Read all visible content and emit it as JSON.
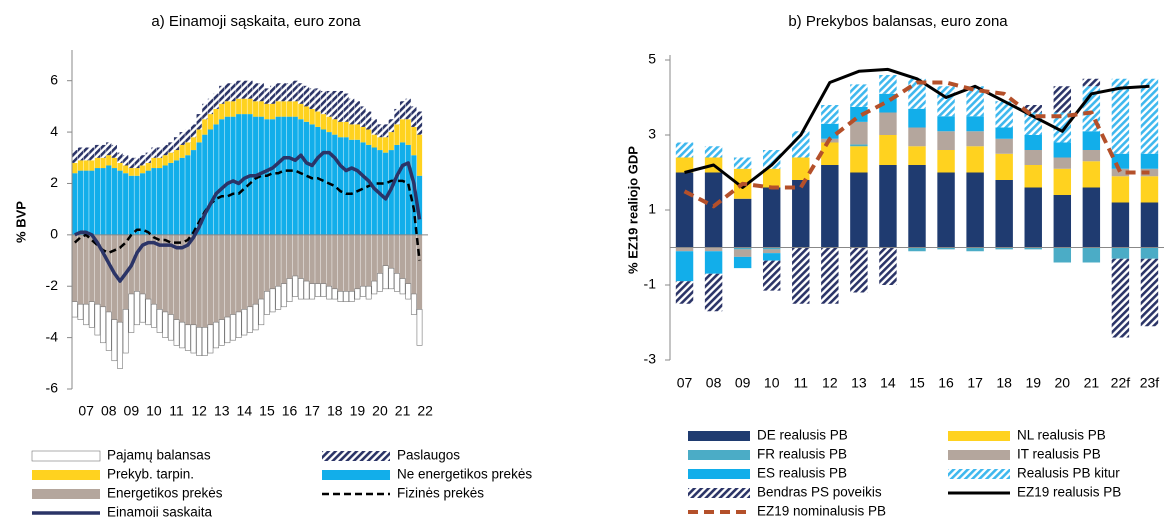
{
  "chart_data": [
    {
      "type": "bar",
      "title": "a) Einamoji sąskaita, euro zona",
      "ylabel": "% BVP",
      "categories": [
        null,
        null,
        "07",
        null,
        null,
        null,
        "08",
        null,
        null,
        null,
        "09",
        null,
        null,
        null,
        "10",
        null,
        null,
        null,
        "11",
        null,
        null,
        null,
        "12",
        null,
        null,
        null,
        "13",
        null,
        null,
        null,
        "14",
        null,
        null,
        null,
        "15",
        null,
        null,
        null,
        "16",
        null,
        null,
        null,
        "17",
        null,
        null,
        null,
        "18",
        null,
        null,
        null,
        "19",
        null,
        null,
        null,
        "20",
        null,
        null,
        null,
        "21",
        null,
        null,
        null,
        "22"
      ],
      "ylim": [
        -6,
        7
      ],
      "yticks": [
        -6,
        -4,
        -2,
        0,
        2,
        4,
        6
      ],
      "series": [
        {
          "name": "Pajamų balansas",
          "type": "bar",
          "color": "#ffffff",
          "values": [
            -0.6,
            -0.6,
            -0.8,
            -1.0,
            -1.2,
            -1.4,
            -1.5,
            -1.6,
            -1.8,
            -1.7,
            -1.5,
            -1.3,
            -1.1,
            -1.0,
            -0.9,
            -0.9,
            -1.0,
            -1.0,
            -1.0,
            -1.0,
            -1.0,
            -1.1,
            -1.1,
            -1.1,
            -1.1,
            -1.0,
            -1.0,
            -1.0,
            -1.0,
            -1.0,
            -1.0,
            -1.0,
            -1.0,
            -1.0,
            -0.9,
            -0.9,
            -0.9,
            -0.9,
            -0.9,
            -0.8,
            -0.8,
            -0.7,
            -0.6,
            -0.5,
            -0.5,
            -0.5,
            -0.4,
            -0.4,
            -0.4,
            -0.4,
            -0.4,
            -0.4,
            -0.5,
            -0.5,
            -0.7,
            -0.9,
            -0.8,
            -0.7,
            -0.6,
            -0.6,
            -0.8,
            -1.4,
            null
          ]
        },
        {
          "name": "Paslaugos",
          "type": "bar",
          "pattern": "hatch",
          "color": "#2b3467",
          "values": [
            0.5,
            0.5,
            0.5,
            0.5,
            0.5,
            0.5,
            0.5,
            0.5,
            0.4,
            0.4,
            0.4,
            0.4,
            0.4,
            0.4,
            0.4,
            0.4,
            0.4,
            0.4,
            0.5,
            0.5,
            0.5,
            0.5,
            0.6,
            0.6,
            0.6,
            0.6,
            0.7,
            0.7,
            0.7,
            0.7,
            0.7,
            0.7,
            0.7,
            0.7,
            0.6,
            0.7,
            0.7,
            0.7,
            0.7,
            0.8,
            0.8,
            0.8,
            0.8,
            0.9,
            0.9,
            1.0,
            1.1,
            1.2,
            1.1,
            1.0,
            0.9,
            0.8,
            0.7,
            0.6,
            0.5,
            0.5,
            0.5,
            0.6,
            0.7,
            0.8,
            0.8,
            0.9,
            null
          ]
        },
        {
          "name": "Prekyb. tarpin.",
          "type": "bar",
          "color": "#ffd21f",
          "values": [
            0.4,
            0.4,
            0.4,
            0.4,
            0.4,
            0.4,
            0.4,
            0.4,
            0.3,
            0.3,
            0.3,
            0.3,
            0.3,
            0.3,
            0.4,
            0.4,
            0.4,
            0.4,
            0.4,
            0.5,
            0.5,
            0.5,
            0.5,
            0.6,
            0.6,
            0.6,
            0.6,
            0.6,
            0.6,
            0.6,
            0.6,
            0.6,
            0.6,
            0.6,
            0.6,
            0.6,
            0.6,
            0.6,
            0.6,
            0.6,
            0.6,
            0.6,
            0.6,
            0.6,
            0.6,
            0.6,
            0.6,
            0.6,
            0.6,
            0.6,
            0.6,
            0.6,
            0.6,
            0.5,
            0.5,
            0.6,
            0.7,
            0.8,
            0.9,
            1.0,
            1.1,
            1.6,
            null
          ]
        },
        {
          "name": "Ne energetikos prekės",
          "type": "bar",
          "color": "#12aeea",
          "values": [
            2.4,
            2.5,
            2.5,
            2.5,
            2.6,
            2.6,
            2.7,
            2.6,
            2.5,
            2.4,
            2.3,
            2.3,
            2.4,
            2.5,
            2.6,
            2.6,
            2.7,
            2.8,
            2.9,
            3.0,
            3.1,
            3.3,
            3.6,
            3.9,
            4.1,
            4.3,
            4.5,
            4.6,
            4.6,
            4.7,
            4.7,
            4.7,
            4.6,
            4.6,
            4.5,
            4.5,
            4.6,
            4.6,
            4.6,
            4.6,
            4.5,
            4.4,
            4.3,
            4.2,
            4.1,
            4.0,
            3.9,
            3.8,
            3.8,
            3.7,
            3.7,
            3.6,
            3.5,
            3.4,
            3.3,
            3.2,
            3.3,
            3.5,
            3.6,
            3.5,
            3.1,
            2.3,
            null
          ]
        },
        {
          "name": "Energetikos prekės",
          "type": "bar",
          "color": "#b4a69d",
          "values": [
            -2.6,
            -2.7,
            -2.7,
            -2.6,
            -2.7,
            -2.8,
            -3.0,
            -3.3,
            -3.4,
            -2.9,
            -2.3,
            -2.2,
            -2.3,
            -2.5,
            -2.7,
            -2.9,
            -3.0,
            -3.1,
            -3.3,
            -3.4,
            -3.5,
            -3.5,
            -3.6,
            -3.6,
            -3.5,
            -3.4,
            -3.3,
            -3.2,
            -3.1,
            -3.0,
            -2.9,
            -2.8,
            -2.7,
            -2.5,
            -2.2,
            -2.1,
            -2.0,
            -1.9,
            -1.7,
            -1.6,
            -1.7,
            -1.8,
            -1.9,
            -1.9,
            -1.9,
            -2.0,
            -2.1,
            -2.2,
            -2.2,
            -2.2,
            -2.1,
            -2.0,
            -2.0,
            -1.8,
            -1.5,
            -1.2,
            -1.3,
            -1.5,
            -1.7,
            -1.9,
            -2.3,
            -2.9,
            null
          ]
        },
        {
          "name": "Fizinės prekės",
          "type": "line",
          "dash": true,
          "color": "#000000",
          "values": [
            -0.3,
            -0.1,
            0.0,
            -0.2,
            -0.4,
            -0.6,
            -0.7,
            -0.6,
            -0.5,
            -0.3,
            0.0,
            0.2,
            0.2,
            0.1,
            -0.1,
            -0.2,
            -0.2,
            -0.3,
            -0.3,
            -0.3,
            -0.2,
            0.1,
            0.5,
            0.9,
            1.2,
            1.4,
            1.5,
            1.5,
            1.6,
            1.6,
            1.8,
            2.0,
            2.2,
            2.3,
            2.3,
            2.4,
            2.4,
            2.5,
            2.5,
            2.5,
            2.4,
            2.3,
            2.2,
            2.2,
            2.1,
            2.0,
            1.9,
            1.7,
            1.6,
            1.6,
            1.7,
            1.8,
            1.9,
            2.0,
            2.0,
            2.0,
            2.1,
            2.1,
            2.1,
            2.0,
            1.0,
            -1.0,
            null
          ]
        },
        {
          "name": "Einamoji sąskaita",
          "type": "line",
          "color": "#2b3467",
          "values": [
            0.0,
            0.1,
            0.1,
            0.0,
            -0.3,
            -0.7,
            -1.1,
            -1.5,
            -1.8,
            -1.5,
            -1.2,
            -0.7,
            -0.4,
            -0.3,
            -0.3,
            -0.4,
            -0.4,
            -0.4,
            -0.5,
            -0.5,
            -0.4,
            -0.1,
            0.3,
            0.8,
            1.2,
            1.6,
            1.8,
            2.0,
            2.1,
            2.0,
            2.2,
            2.3,
            2.3,
            2.4,
            2.5,
            2.6,
            2.8,
            3.0,
            3.0,
            2.9,
            3.1,
            2.8,
            2.7,
            3.0,
            3.2,
            3.2,
            3.0,
            2.7,
            2.5,
            2.6,
            2.5,
            2.3,
            2.1,
            1.8,
            1.6,
            1.4,
            1.8,
            2.3,
            2.7,
            2.8,
            2.0,
            0.6,
            null
          ]
        }
      ]
    },
    {
      "type": "bar",
      "title": "b) Prekybos balansas, euro zona",
      "ylabel": "% EZ19 realiojo GDP",
      "categories": [
        "07",
        "08",
        "09",
        "10",
        "11",
        "12",
        "13",
        "14",
        "15",
        "16",
        "17",
        "18",
        "19",
        "20",
        "21",
        "22f",
        "23f"
      ],
      "ylim": [
        -3,
        5
      ],
      "yticks": [
        -3,
        -1,
        1,
        3,
        5
      ],
      "series": [
        {
          "name": "DE realusis PB",
          "type": "bar",
          "color": "#1f3b70",
          "values": [
            2.0,
            2.0,
            1.3,
            1.6,
            1.8,
            2.2,
            2.0,
            2.2,
            2.2,
            2.0,
            2.0,
            1.8,
            1.6,
            1.4,
            1.6,
            1.2,
            1.2
          ]
        },
        {
          "name": "NL realusis PB",
          "type": "bar",
          "color": "#ffd21f",
          "values": [
            0.4,
            0.4,
            0.8,
            0.5,
            0.6,
            0.6,
            0.7,
            0.8,
            0.5,
            0.6,
            0.7,
            0.7,
            0.6,
            0.7,
            0.7,
            0.7,
            0.7
          ]
        },
        {
          "name": "FR realusis PB",
          "type": "bar",
          "color": "#4bacc6",
          "values": [
            0.0,
            0.0,
            -0.05,
            -0.05,
            0.0,
            0.0,
            0.05,
            0.0,
            -0.1,
            -0.05,
            -0.1,
            -0.05,
            -0.05,
            -0.4,
            -0.4,
            -0.3,
            -0.3
          ]
        },
        {
          "name": "IT realusis PB",
          "type": "bar",
          "color": "#b4a69d",
          "values": [
            -0.1,
            -0.1,
            -0.2,
            -0.1,
            0.0,
            0.1,
            0.6,
            0.6,
            0.5,
            0.5,
            0.4,
            0.4,
            0.4,
            0.3,
            0.3,
            0.2,
            0.2
          ]
        },
        {
          "name": "ES realusis PB",
          "type": "bar",
          "color": "#12aeea",
          "values": [
            -0.8,
            -0.6,
            -0.3,
            -0.2,
            0.0,
            0.4,
            0.4,
            0.5,
            0.5,
            0.4,
            0.4,
            0.3,
            0.4,
            0.4,
            0.5,
            0.4,
            0.4
          ]
        },
        {
          "name": "Realusis PB kitur",
          "type": "bar",
          "pattern": "hatch",
          "color": "#3fb8ee",
          "values": [
            0.4,
            0.3,
            0.3,
            0.5,
            0.7,
            0.5,
            0.6,
            0.5,
            0.8,
            0.8,
            0.8,
            0.7,
            0.6,
            0.8,
            1.2,
            2.0,
            2.0
          ]
        },
        {
          "name": "Bendras PS poveikis",
          "type": "bar",
          "pattern": "hatch",
          "color": "#2b3467",
          "values": [
            -0.6,
            -1.0,
            0.0,
            -0.8,
            -1.5,
            -1.5,
            -1.2,
            -1.0,
            0.0,
            0.0,
            0.0,
            0.0,
            0.2,
            0.7,
            0.2,
            -2.1,
            -1.8
          ]
        },
        {
          "name": "EZ19 realusis PB",
          "type": "line",
          "color": "#000000",
          "values": [
            2.0,
            2.2,
            1.6,
            2.2,
            3.0,
            4.4,
            4.7,
            4.75,
            4.5,
            4.0,
            4.3,
            3.9,
            3.5,
            3.1,
            4.1,
            4.25,
            4.3
          ]
        },
        {
          "name": "EZ19 nominalusis PB",
          "type": "line",
          "dash": true,
          "color": "#b4502a",
          "values": [
            1.5,
            1.1,
            1.7,
            1.6,
            1.6,
            2.9,
            3.5,
            3.9,
            4.4,
            4.4,
            4.2,
            4.1,
            3.5,
            3.5,
            3.6,
            2.0,
            2.0
          ]
        }
      ]
    }
  ]
}
